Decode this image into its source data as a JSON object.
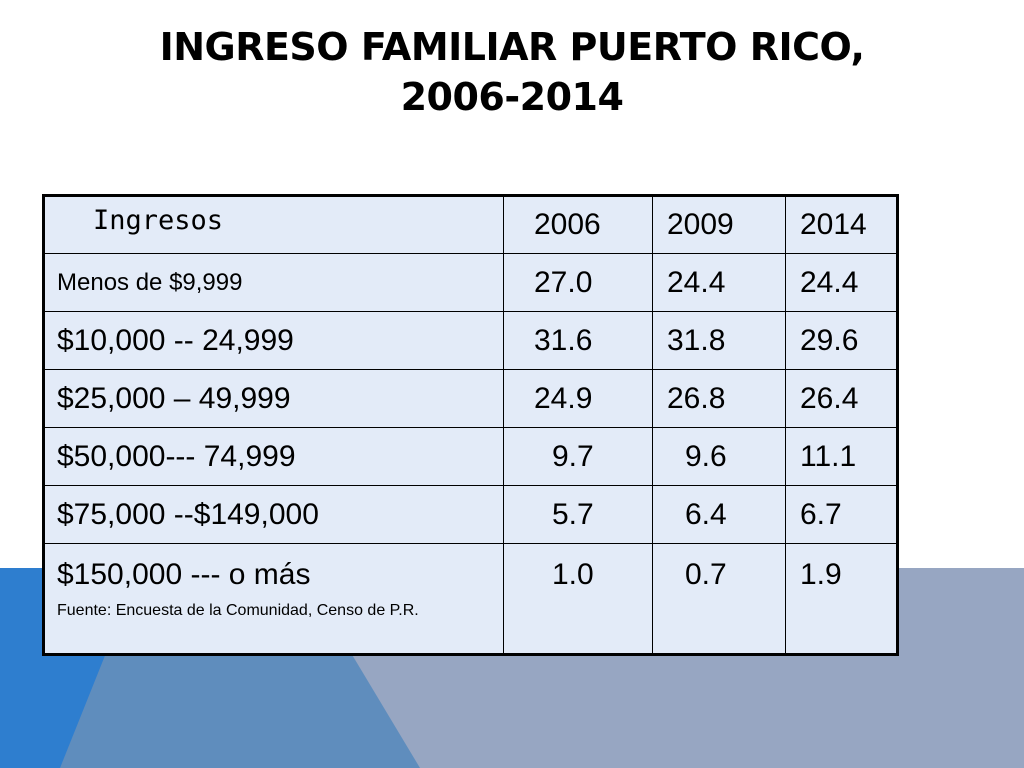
{
  "slide": {
    "title_line1": "INGRESO FAMILIAR PUERTO RICO,",
    "title_line2": "2006-2014"
  },
  "table": {
    "header": {
      "label": "Ingresos",
      "years": [
        "2006",
        "2009",
        "2014"
      ]
    },
    "rows": [
      {
        "label": "Menos de $9,999",
        "values": [
          "27.0",
          "24.4",
          "24.4"
        ]
      },
      {
        "label": "$10,000 -- 24,999",
        "values": [
          "31.6",
          "31.8",
          "29.6"
        ]
      },
      {
        "label": "$25,000 – 49,999",
        "values": [
          "24.9",
          "26.8",
          "26.4"
        ]
      },
      {
        "label": "$50,000--- 74,999",
        "values": [
          "9.7",
          "9.6",
          "11.1"
        ]
      },
      {
        "label": "$75,000 --$149,000",
        "values": [
          "5.7",
          "6.4",
          "6.7"
        ]
      },
      {
        "label": "$150,000 --- o más",
        "values": [
          "1.0",
          "0.7",
          "1.9"
        ]
      }
    ],
    "source": "Fuente: Encuesta de la Comunidad, Censo de P.R."
  }
}
